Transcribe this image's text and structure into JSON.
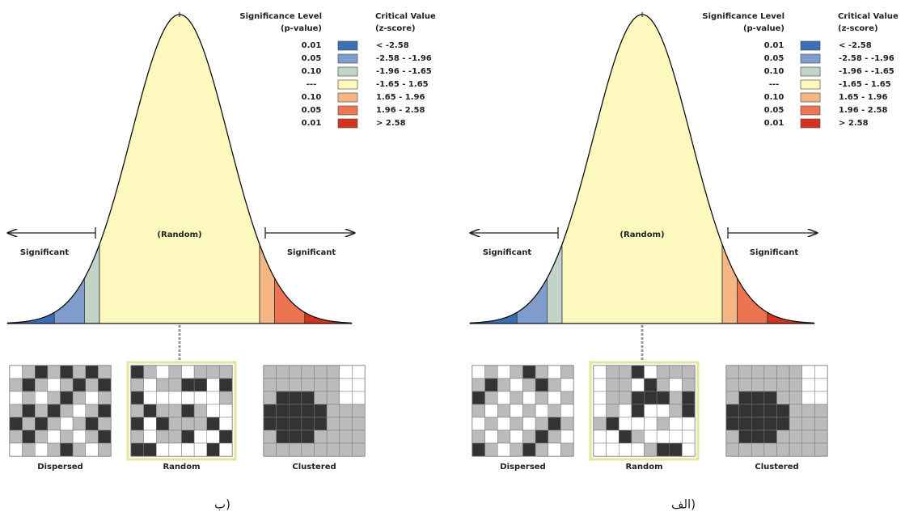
{
  "panels": [
    {
      "caption": "ب)",
      "legend": {
        "p_header": [
          "Significance Level",
          "(p-value)"
        ],
        "z_header": [
          "Critical Value",
          "(z-score)"
        ],
        "rows": [
          {
            "p": "0.01",
            "range": "< -2.58",
            "color": "#3d6db5"
          },
          {
            "p": "0.05",
            "range": "-2.58 - -1.96",
            "color": "#7f9ccc"
          },
          {
            "p": "0.10",
            "range": "-1.96 - -1.65",
            "color": "#c2d3c8"
          },
          {
            "p": "---",
            "range": "-1.65 - 1.65",
            "color": "#fdf8bd"
          },
          {
            "p": "0.10",
            "range": "1.65 - 1.96",
            "color": "#f6b684"
          },
          {
            "p": "0.05",
            "range": "1.96 - 2.58",
            "color": "#ec7452"
          },
          {
            "p": "0.01",
            "range": "> 2.58",
            "color": "#d5321f"
          }
        ]
      },
      "random_label": "(Random)",
      "significant_left": "Significant",
      "significant_right": "Significant",
      "maps": [
        "Dispersed",
        "Random",
        "Clustered"
      ]
    },
    {
      "caption": "الف)",
      "legend": {
        "p_header": [
          "Significance Level",
          "(p-value)"
        ],
        "z_header": [
          "Critical Value",
          "(z-score)"
        ],
        "rows": [
          {
            "p": "0.01",
            "range": "< -2.58",
            "color": "#3d6db5"
          },
          {
            "p": "0.05",
            "range": "-2.58 - -1.96",
            "color": "#7f9ccc"
          },
          {
            "p": "0.10",
            "range": "-1.96 - -1.65",
            "color": "#c2d3c8"
          },
          {
            "p": "---",
            "range": "-1.65 - 1.65",
            "color": "#fdf8bd"
          },
          {
            "p": "0.10",
            "range": "1.65 - 1.96",
            "color": "#f6b684"
          },
          {
            "p": "0.05",
            "range": "1.96 - 2.58",
            "color": "#ec7452"
          },
          {
            "p": "0.01",
            "range": "> 2.58",
            "color": "#d5321f"
          }
        ]
      },
      "random_label": "(Random)",
      "significant_left": "Significant",
      "significant_right": "Significant",
      "maps": [
        "Dispersed",
        "Random",
        "Clustered"
      ]
    }
  ]
}
